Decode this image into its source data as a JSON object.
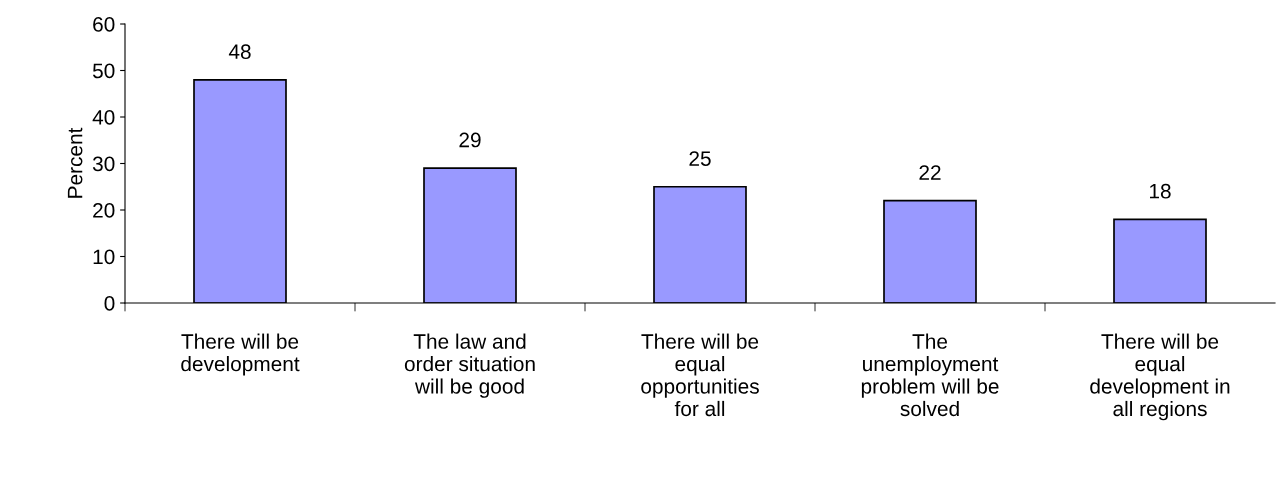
{
  "chart_data": {
    "type": "bar",
    "categories": [
      "There will be\ndevelopment",
      "The law and\norder situation\nwill be good",
      "There will be\nequal\nopportunities\nfor all",
      "The\nunemployment\nproblem will be\nsolved",
      "There will be\nequal\ndevelopment in\nall regions"
    ],
    "values": [
      48,
      29,
      25,
      22,
      18
    ],
    "color": "#9999ff",
    "ylabel": "Percent",
    "ylim": [
      0,
      60
    ],
    "yticks": [
      0,
      10,
      20,
      30,
      40,
      50,
      60
    ],
    "data_labels": true,
    "grid": false,
    "legend": false
  }
}
